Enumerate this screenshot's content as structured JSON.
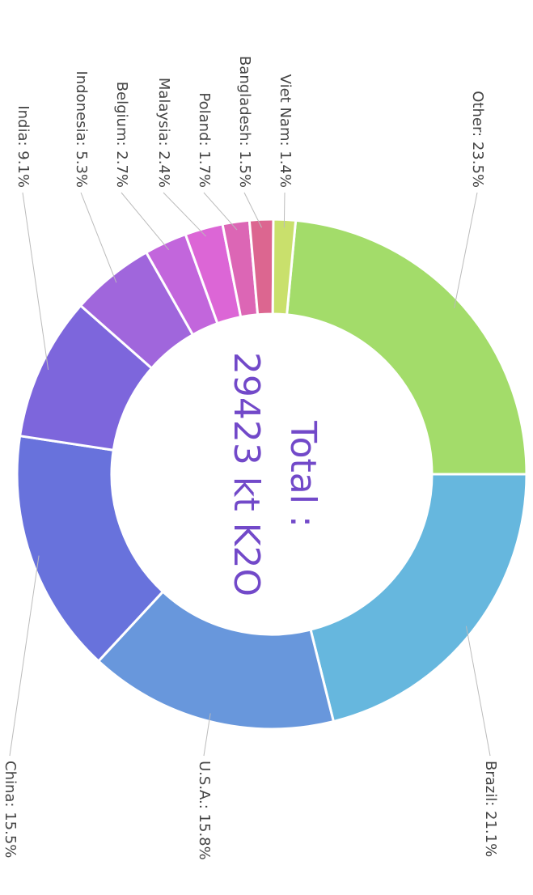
{
  "chart_data": {
    "type": "donut",
    "center_text": [
      "Total :",
      "29423 kt K2O"
    ],
    "values": [
      23.5,
      21.1,
      15.8,
      15.5,
      9.1,
      5.3,
      2.7,
      2.4,
      1.7,
      1.5,
      1.4
    ],
    "value_labels": [
      "Other: 23.5%",
      "Brazil: 21.1%",
      "U.S.A.: 15.8%",
      "China: 15.5%",
      "India: 9.1%",
      "Indonesia: 5.3%",
      "Belgium: 2.7%",
      "Malaysia: 2.4%",
      "Poland: 1.7%",
      "Bangladesh: 1.5%",
      "Viet Nam: 1.4%"
    ],
    "colors": [
      "#a3dc6a",
      "#66b7de",
      "#6897dc",
      "#6872dc",
      "#7d66dc",
      "#a066dc",
      "#c266dc",
      "#dc66d6",
      "#dc66b5",
      "#dc6690",
      "#c9e06c"
    ]
  }
}
